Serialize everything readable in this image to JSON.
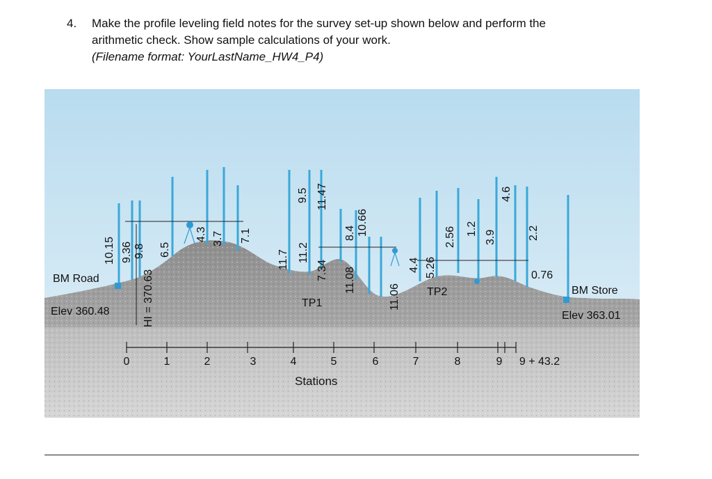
{
  "question": {
    "number": "4.",
    "line1": "Make the profile leveling field notes for the survey set-up shown below and perform the",
    "line2": "arithmetic check. Show sample calculations of your work.",
    "line3": "(Filename format: YourLastName_HW4_P4)"
  },
  "figure": {
    "bm_road": "BM Road",
    "elev_left": "Elev 360.48",
    "bm_store": "BM Store",
    "elev_right": "Elev 363.01",
    "hi": "HI = 370.63",
    "tp1": "TP1",
    "tp2": "TP2",
    "stations_label": "Stations",
    "station_ticks": [
      "0",
      "1",
      "2",
      "3",
      "4",
      "5",
      "6",
      "7",
      "8",
      "9",
      "9 + 43.2"
    ],
    "rod_readings": [
      "10.15",
      "9.36",
      "9.8",
      "6.5",
      "4.3",
      "3.7",
      "7.1",
      "11.7",
      "11.2",
      "9.5",
      "11.47",
      "7.34",
      "11.08",
      "8.4",
      "10.66",
      "11.06",
      "4.4",
      "5.26",
      "2.56",
      "1.2",
      "3.9",
      "4.6",
      "2.2",
      "0.76"
    ]
  },
  "colors": {
    "rod": "#3aa8d8",
    "sky": "#cfe6f2",
    "ground": "#9a9a9a",
    "marker": "#2e9ad6"
  }
}
